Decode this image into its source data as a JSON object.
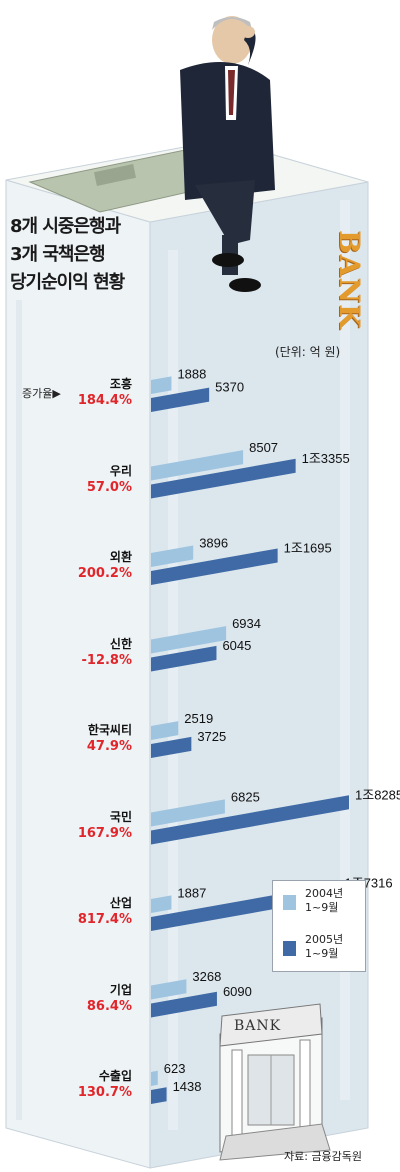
{
  "title_lines": [
    "8개 시중은행과",
    "3개 국책은행",
    "당기순이익 현황"
  ],
  "unit_label": "(단위: 억 원)",
  "rate_caption": "증가율▶",
  "source": "자료: 금융감독원",
  "decor_text": {
    "side_sign": "BANK",
    "building_sign": "BANK"
  },
  "colors": {
    "series_2004": "#9ec4e0",
    "series_2005": "#3f6aa6",
    "rate": "#e0262b",
    "bank_side": "#e39b2e"
  },
  "legend": [
    {
      "label_line1": "2004년",
      "label_line2": "1~9월"
    },
    {
      "label_line1": "2005년",
      "label_line2": "1~9월"
    }
  ],
  "chart_data": {
    "type": "bar",
    "orientation": "horizontal",
    "title": "8개 시중은행과 3개 국책은행 당기순이익 현황",
    "unit": "억 원",
    "categories": [
      "조흥",
      "우리",
      "외환",
      "신한",
      "한국씨티",
      "국민",
      "산업",
      "기업",
      "수출입"
    ],
    "series": [
      {
        "name": "2004년 1~9월",
        "values": [
          1888,
          8507,
          3896,
          6934,
          2519,
          6825,
          1887,
          3268,
          623
        ],
        "labels": [
          "1888",
          "8507",
          "3896",
          "6934",
          "2519",
          "6825",
          "1887",
          "3268",
          "623"
        ]
      },
      {
        "name": "2005년 1~9월",
        "values": [
          5370,
          13355,
          11695,
          6045,
          3725,
          18285,
          17316,
          6090,
          1438
        ],
        "labels": [
          "5370",
          "1조3355",
          "1조1695",
          "6045",
          "3725",
          "1조8285",
          "1조7316",
          "6090",
          "1438"
        ]
      }
    ],
    "growth_rates": [
      "184.4%",
      "57.0%",
      "200.2%",
      "-12.8%",
      "47.9%",
      "167.9%",
      "817.4%",
      "86.4%",
      "130.7%"
    ],
    "legend_position": "bottom-right"
  }
}
